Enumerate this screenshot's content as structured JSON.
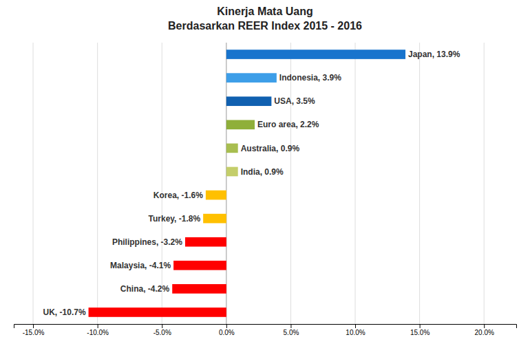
{
  "chart_data": {
    "type": "bar",
    "orientation": "horizontal",
    "title": "Kinerja Mata Uang\nBerdasarkan REER Index 2015 - 2016",
    "categories": [
      "Japan",
      "Indonesia",
      "USA",
      "Euro area",
      "Australia",
      "India",
      "Korea",
      "Turkey",
      "Philippines",
      "Malaysia",
      "China",
      "UK"
    ],
    "values": [
      13.9,
      3.9,
      3.5,
      2.2,
      0.9,
      0.9,
      -1.6,
      -1.8,
      -3.2,
      -4.1,
      -4.2,
      -10.7
    ],
    "value_labels": [
      "Japan, 13.9%",
      "Indonesia, 3.9%",
      "USA, 3.5%",
      "Euro area, 2.2%",
      "Australia, 0.9%",
      "India, 0.9%",
      "Korea, -1.6%",
      "Turkey, -1.8%",
      "Philippines, -3.2%",
      "Malaysia, -4.1%",
      "China, -4.2%",
      "UK, -10.7%"
    ],
    "data_labels": true,
    "colors": [
      "#1874CD",
      "#3D9EE8",
      "#1060B0",
      "#8FAF3A",
      "#A8BE50",
      "#C4CE6A",
      "#FFC000",
      "#FFC000",
      "#FF0000",
      "#FF0000",
      "#FF0000",
      "#FF0000"
    ],
    "xlim": [
      -16.5,
      22.5
    ],
    "xticks": [
      {
        "value": -15.0,
        "label": "-15.0%"
      },
      {
        "value": -10.0,
        "label": "-10.0%"
      },
      {
        "value": -5.0,
        "label": "-5.0%"
      },
      {
        "value": 0.0,
        "label": "0.0%"
      },
      {
        "value": 5.0,
        "label": "5.0%"
      },
      {
        "value": 10.0,
        "label": "10.0%"
      },
      {
        "value": 15.0,
        "label": "15.0%"
      },
      {
        "value": 20.0,
        "label": "20.0%"
      }
    ],
    "grid": true,
    "tick_labels": "x"
  }
}
